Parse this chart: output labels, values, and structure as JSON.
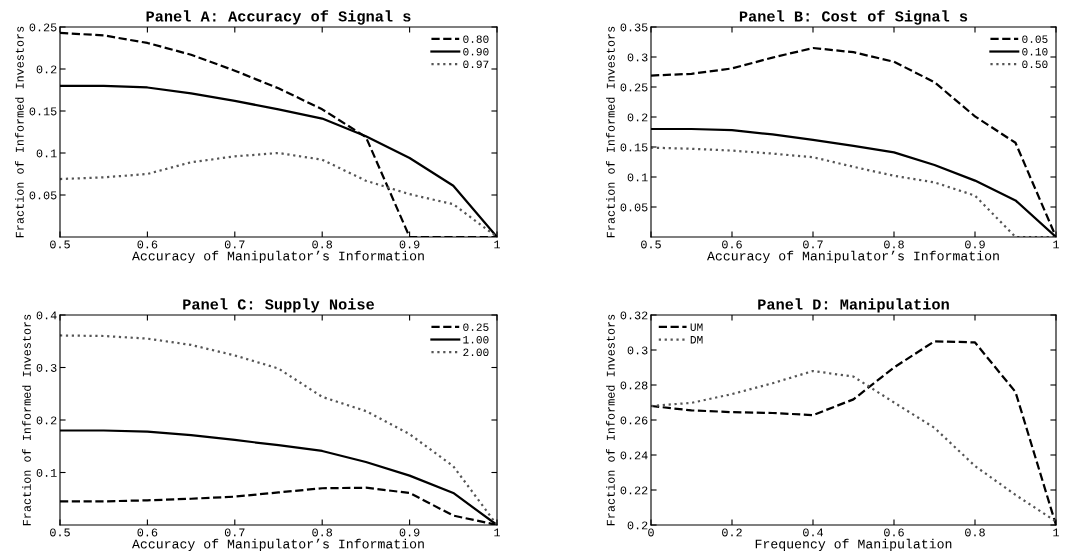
{
  "chart_data": [
    {
      "type": "line",
      "title": "Panel A: Accuracy of Signal s",
      "xlabel": "Accuracy of Manipulator’s Information",
      "ylabel": "Fraction of Informed Investors",
      "x": [
        0.5,
        0.55,
        0.6,
        0.65,
        0.7,
        0.75,
        0.8,
        0.85,
        0.9,
        0.95,
        1
      ],
      "xlim": [
        0.5,
        1
      ],
      "xticks": [
        0.5,
        0.6,
        0.7,
        0.8,
        0.9,
        1
      ],
      "ylim": [
        0,
        0.25
      ],
      "yticks": [
        0.05,
        0.1,
        0.15,
        0.2,
        0.25
      ],
      "grid": false,
      "legend": "top right",
      "marker": "none",
      "series": [
        {
          "name": "0.80",
          "color": "#000000",
          "line_style": "dashed",
          "values": [
            0.243,
            0.24,
            0.231,
            0.217,
            0.198,
            0.177,
            0.152,
            0.119,
            0,
            0,
            0
          ]
        },
        {
          "name": "0.90",
          "color": "#000000",
          "line_style": "solid",
          "values": [
            0.18,
            0.18,
            0.178,
            0.171,
            0.162,
            0.152,
            0.141,
            0.12,
            0.094,
            0.061,
            0
          ]
        },
        {
          "name": "0.97",
          "color": "#555555",
          "line_style": "dotted",
          "values": [
            0.069,
            0.071,
            0.075,
            0.089,
            0.096,
            0.1,
            0.092,
            0.067,
            0.051,
            0.039,
            0
          ]
        }
      ]
    },
    {
      "type": "line",
      "title": "Panel B: Cost of Signal s",
      "xlabel": "Accuracy of Manipulator’s Information",
      "ylabel": "Fraction of Informed Investors",
      "x": [
        0.5,
        0.55,
        0.6,
        0.65,
        0.7,
        0.75,
        0.8,
        0.85,
        0.9,
        0.95,
        1
      ],
      "xlim": [
        0.5,
        1
      ],
      "xticks": [
        0.5,
        0.6,
        0.7,
        0.8,
        0.9,
        1
      ],
      "ylim": [
        0,
        0.35
      ],
      "yticks": [
        0.05,
        0.1,
        0.15,
        0.2,
        0.25,
        0.3,
        0.35
      ],
      "grid": false,
      "legend": "top right",
      "marker": "none",
      "series": [
        {
          "name": "0.05",
          "color": "#000000",
          "line_style": "dashed",
          "values": [
            0.269,
            0.272,
            0.281,
            0.299,
            0.315,
            0.308,
            0.292,
            0.258,
            0.201,
            0.157,
            0
          ]
        },
        {
          "name": "0.10",
          "color": "#000000",
          "line_style": "solid",
          "values": [
            0.18,
            0.18,
            0.178,
            0.171,
            0.162,
            0.152,
            0.141,
            0.12,
            0.094,
            0.061,
            0
          ]
        },
        {
          "name": "0.50",
          "color": "#555555",
          "line_style": "dotted",
          "values": [
            0.149,
            0.147,
            0.144,
            0.139,
            0.133,
            0.117,
            0.102,
            0.091,
            0.069,
            0,
            0
          ]
        }
      ]
    },
    {
      "type": "line",
      "title": "Panel C: Supply Noise",
      "xlabel": "Accuracy of Manipulator’s Information",
      "ylabel": "Fraction of Informed Investors",
      "x": [
        0.5,
        0.55,
        0.6,
        0.65,
        0.7,
        0.75,
        0.8,
        0.85,
        0.9,
        0.95,
        1
      ],
      "xlim": [
        0.5,
        1
      ],
      "xticks": [
        0.5,
        0.6,
        0.7,
        0.8,
        0.9,
        1
      ],
      "ylim": [
        0,
        0.4
      ],
      "yticks": [
        0.1,
        0.2,
        0.3,
        0.4
      ],
      "grid": false,
      "legend": "top right",
      "marker": "none",
      "series": [
        {
          "name": "0.25",
          "color": "#000000",
          "line_style": "dashed",
          "values": [
            0.045,
            0.045,
            0.047,
            0.05,
            0.054,
            0.062,
            0.07,
            0.071,
            0.061,
            0.018,
            0
          ]
        },
        {
          "name": "1.00",
          "color": "#000000",
          "line_style": "solid",
          "values": [
            0.18,
            0.18,
            0.178,
            0.171,
            0.162,
            0.152,
            0.141,
            0.12,
            0.094,
            0.061,
            0
          ]
        },
        {
          "name": "2.00",
          "color": "#555555",
          "line_style": "dotted",
          "values": [
            0.361,
            0.36,
            0.355,
            0.343,
            0.323,
            0.298,
            0.244,
            0.217,
            0.173,
            0.112,
            0
          ]
        }
      ]
    },
    {
      "type": "line",
      "title": "Panel D: Manipulation",
      "xlabel": "Frequency of Manipulation",
      "ylabel": "Fraction of Informed Investors",
      "x": [
        0,
        0.1,
        0.2,
        0.3,
        0.4,
        0.5,
        0.6,
        0.7,
        0.8,
        0.9,
        1
      ],
      "xlim": [
        0,
        1
      ],
      "xticks": [
        0,
        0.2,
        0.4,
        0.6,
        0.8,
        1
      ],
      "ylim": [
        0.2,
        0.32
      ],
      "yticks": [
        0.2,
        0.22,
        0.24,
        0.26,
        0.28,
        0.3,
        0.32
      ],
      "grid": false,
      "legend": "top left",
      "marker": "none",
      "series": [
        {
          "name": "UM",
          "color": "#000000",
          "line_style": "dashed",
          "values": [
            0.268,
            0.2655,
            0.2645,
            0.264,
            0.2628,
            0.2718,
            0.29,
            0.305,
            0.3043,
            0.276,
            0.2
          ]
        },
        {
          "name": "DM",
          "color": "#555555",
          "line_style": "dotted",
          "values": [
            0.268,
            0.2698,
            0.2748,
            0.281,
            0.288,
            0.2848,
            0.27,
            0.2555,
            0.2337,
            0.2172,
            0.202
          ]
        }
      ]
    }
  ]
}
